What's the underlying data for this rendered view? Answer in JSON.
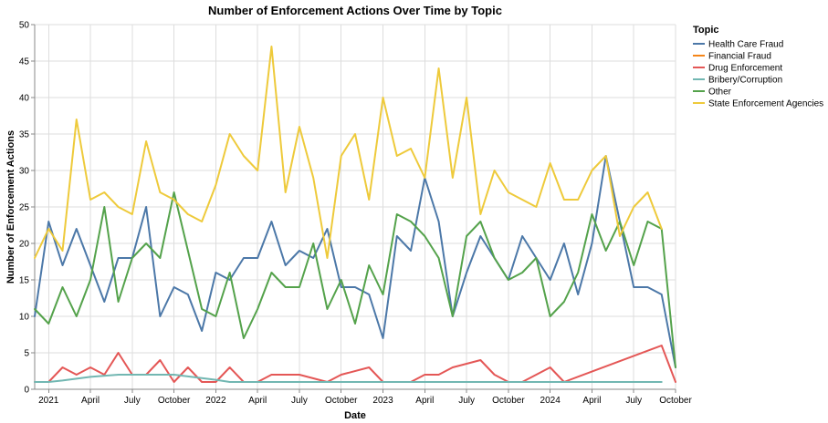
{
  "chart_data": {
    "type": "line",
    "title": "Number of Enforcement Actions Over Time by Topic",
    "xlabel": "Date",
    "ylabel": "Number of Enforcement Actions",
    "ylim": [
      0,
      50
    ],
    "y_ticks": [
      0,
      5,
      10,
      15,
      20,
      25,
      30,
      35,
      40,
      45,
      50
    ],
    "x_range": [
      "2020-12",
      "2024-10"
    ],
    "x_ticks": [
      {
        "date": "2021-01",
        "label": "2021"
      },
      {
        "date": "2021-04",
        "label": "April"
      },
      {
        "date": "2021-07",
        "label": "July"
      },
      {
        "date": "2021-10",
        "label": "October"
      },
      {
        "date": "2022-01",
        "label": "2022"
      },
      {
        "date": "2022-04",
        "label": "April"
      },
      {
        "date": "2022-07",
        "label": "July"
      },
      {
        "date": "2022-10",
        "label": "October"
      },
      {
        "date": "2023-01",
        "label": "2023"
      },
      {
        "date": "2023-04",
        "label": "April"
      },
      {
        "date": "2023-07",
        "label": "July"
      },
      {
        "date": "2023-10",
        "label": "October"
      },
      {
        "date": "2024-01",
        "label": "2024"
      },
      {
        "date": "2024-04",
        "label": "April"
      },
      {
        "date": "2024-07",
        "label": "July"
      },
      {
        "date": "2024-10",
        "label": "October"
      }
    ],
    "grid": true,
    "legend": {
      "title": "Topic",
      "position": "right"
    },
    "series": [
      {
        "name": "Health Care Fraud",
        "color": "#4c78a8",
        "points": [
          [
            "2020-12",
            10
          ],
          [
            "2021-01",
            23
          ],
          [
            "2021-02",
            17
          ],
          [
            "2021-03",
            22
          ],
          [
            "2021-04",
            17
          ],
          [
            "2021-05",
            12
          ],
          [
            "2021-06",
            18
          ],
          [
            "2021-07",
            18
          ],
          [
            "2021-08",
            25
          ],
          [
            "2021-09",
            10
          ],
          [
            "2021-10",
            14
          ],
          [
            "2021-11",
            13
          ],
          [
            "2021-12",
            8
          ],
          [
            "2022-01",
            16
          ],
          [
            "2022-02",
            15
          ],
          [
            "2022-03",
            18
          ],
          [
            "2022-04",
            18
          ],
          [
            "2022-05",
            23
          ],
          [
            "2022-06",
            17
          ],
          [
            "2022-07",
            19
          ],
          [
            "2022-08",
            18
          ],
          [
            "2022-09",
            22
          ],
          [
            "2022-10",
            14
          ],
          [
            "2022-11",
            14
          ],
          [
            "2022-12",
            13
          ],
          [
            "2023-01",
            7
          ],
          [
            "2023-02",
            21
          ],
          [
            "2023-03",
            19
          ],
          [
            "2023-04",
            29
          ],
          [
            "2023-05",
            23
          ],
          [
            "2023-06",
            10
          ],
          [
            "2023-07",
            16
          ],
          [
            "2023-08",
            21
          ],
          [
            "2023-09",
            18
          ],
          [
            "2023-10",
            15
          ],
          [
            "2023-11",
            21
          ],
          [
            "2023-12",
            18
          ],
          [
            "2024-01",
            15
          ],
          [
            "2024-02",
            20
          ],
          [
            "2024-03",
            13
          ],
          [
            "2024-04",
            20
          ],
          [
            "2024-05",
            32
          ],
          [
            "2024-06",
            23
          ],
          [
            "2024-07",
            14
          ],
          [
            "2024-08",
            14
          ],
          [
            "2024-09",
            13
          ],
          [
            "2024-10",
            3
          ]
        ]
      },
      {
        "name": "Financial Fraud",
        "color": "#f58518",
        "points": [
          [
            "2022-04",
            1
          ],
          [
            "2024-08",
            1
          ]
        ]
      },
      {
        "name": "Drug Enforcement",
        "color": "#e45756",
        "points": [
          [
            "2020-12",
            1
          ],
          [
            "2021-01",
            1
          ],
          [
            "2021-02",
            3
          ],
          [
            "2021-03",
            2
          ],
          [
            "2021-04",
            3
          ],
          [
            "2021-05",
            2
          ],
          [
            "2021-06",
            5
          ],
          [
            "2021-07",
            2
          ],
          [
            "2021-08",
            2
          ],
          [
            "2021-09",
            4
          ],
          [
            "2021-10",
            1
          ],
          [
            "2021-11",
            3
          ],
          [
            "2021-12",
            1
          ],
          [
            "2022-01",
            1
          ],
          [
            "2022-02",
            3
          ],
          [
            "2022-03",
            1
          ],
          [
            "2022-04",
            1
          ],
          [
            "2022-05",
            2
          ],
          [
            "2022-07",
            2
          ],
          [
            "2022-09",
            1
          ],
          [
            "2022-10",
            2
          ],
          [
            "2022-12",
            3
          ],
          [
            "2023-01",
            1
          ],
          [
            "2023-02",
            1
          ],
          [
            "2023-03",
            1
          ],
          [
            "2023-04",
            2
          ],
          [
            "2023-05",
            2
          ],
          [
            "2023-06",
            3
          ],
          [
            "2023-08",
            4
          ],
          [
            "2023-09",
            2
          ],
          [
            "2023-10",
            1
          ],
          [
            "2023-11",
            1
          ],
          [
            "2023-12",
            2
          ],
          [
            "2024-01",
            3
          ],
          [
            "2024-02",
            1
          ],
          [
            "2024-09",
            6
          ],
          [
            "2024-10",
            1
          ]
        ]
      },
      {
        "name": "Bribery/Corruption",
        "color": "#72b7b2",
        "points": [
          [
            "2020-12",
            1
          ],
          [
            "2021-01",
            1
          ],
          [
            "2021-02",
            1.2
          ],
          [
            "2021-04",
            1.7
          ],
          [
            "2021-06",
            2
          ],
          [
            "2021-08",
            2
          ],
          [
            "2021-10",
            2
          ],
          [
            "2022-01",
            1.3
          ],
          [
            "2022-02",
            1
          ],
          [
            "2022-03",
            1
          ],
          [
            "2024-09",
            1
          ]
        ]
      },
      {
        "name": "Other",
        "color": "#54a24b",
        "points": [
          [
            "2020-12",
            11
          ],
          [
            "2021-01",
            9
          ],
          [
            "2021-02",
            14
          ],
          [
            "2021-03",
            10
          ],
          [
            "2021-04",
            15
          ],
          [
            "2021-05",
            25
          ],
          [
            "2021-06",
            12
          ],
          [
            "2021-07",
            18
          ],
          [
            "2021-08",
            20
          ],
          [
            "2021-09",
            18
          ],
          [
            "2021-10",
            27
          ],
          [
            "2021-11",
            19
          ],
          [
            "2021-12",
            11
          ],
          [
            "2022-01",
            10
          ],
          [
            "2022-02",
            16
          ],
          [
            "2022-03",
            7
          ],
          [
            "2022-04",
            11
          ],
          [
            "2022-05",
            16
          ],
          [
            "2022-06",
            14
          ],
          [
            "2022-07",
            14
          ],
          [
            "2022-08",
            20
          ],
          [
            "2022-09",
            11
          ],
          [
            "2022-10",
            15
          ],
          [
            "2022-11",
            9
          ],
          [
            "2022-12",
            17
          ],
          [
            "2023-01",
            13
          ],
          [
            "2023-02",
            24
          ],
          [
            "2023-03",
            23
          ],
          [
            "2023-04",
            21
          ],
          [
            "2023-05",
            18
          ],
          [
            "2023-06",
            10
          ],
          [
            "2023-07",
            21
          ],
          [
            "2023-08",
            23
          ],
          [
            "2023-09",
            18
          ],
          [
            "2023-10",
            15
          ],
          [
            "2023-11",
            16
          ],
          [
            "2023-12",
            18
          ],
          [
            "2024-01",
            10
          ],
          [
            "2024-02",
            12
          ],
          [
            "2024-03",
            16
          ],
          [
            "2024-04",
            24
          ],
          [
            "2024-05",
            19
          ],
          [
            "2024-06",
            23
          ],
          [
            "2024-07",
            17
          ],
          [
            "2024-08",
            23
          ],
          [
            "2024-09",
            22
          ],
          [
            "2024-10",
            3
          ]
        ]
      },
      {
        "name": "State Enforcement Agencies",
        "color": "#eeca3b",
        "points": [
          [
            "2020-12",
            18
          ],
          [
            "2021-01",
            22
          ],
          [
            "2021-02",
            19
          ],
          [
            "2021-03",
            37
          ],
          [
            "2021-04",
            26
          ],
          [
            "2021-05",
            27
          ],
          [
            "2021-06",
            25
          ],
          [
            "2021-07",
            24
          ],
          [
            "2021-08",
            34
          ],
          [
            "2021-09",
            27
          ],
          [
            "2021-10",
            26
          ],
          [
            "2021-11",
            24
          ],
          [
            "2021-12",
            23
          ],
          [
            "2022-01",
            28
          ],
          [
            "2022-02",
            35
          ],
          [
            "2022-03",
            32
          ],
          [
            "2022-04",
            30
          ],
          [
            "2022-05",
            47
          ],
          [
            "2022-06",
            27
          ],
          [
            "2022-07",
            36
          ],
          [
            "2022-08",
            29
          ],
          [
            "2022-09",
            18
          ],
          [
            "2022-10",
            32
          ],
          [
            "2022-11",
            35
          ],
          [
            "2022-12",
            26
          ],
          [
            "2023-01",
            40
          ],
          [
            "2023-02",
            32
          ],
          [
            "2023-03",
            33
          ],
          [
            "2023-04",
            29
          ],
          [
            "2023-05",
            44
          ],
          [
            "2023-06",
            29
          ],
          [
            "2023-07",
            40
          ],
          [
            "2023-08",
            24
          ],
          [
            "2023-09",
            30
          ],
          [
            "2023-10",
            27
          ],
          [
            "2023-12",
            25
          ],
          [
            "2024-01",
            31
          ],
          [
            "2024-02",
            26
          ],
          [
            "2024-03",
            26
          ],
          [
            "2024-04",
            30
          ],
          [
            "2024-05",
            32
          ],
          [
            "2024-06",
            21
          ],
          [
            "2024-07",
            25
          ],
          [
            "2024-08",
            27
          ],
          [
            "2024-09",
            22
          ]
        ]
      }
    ]
  }
}
